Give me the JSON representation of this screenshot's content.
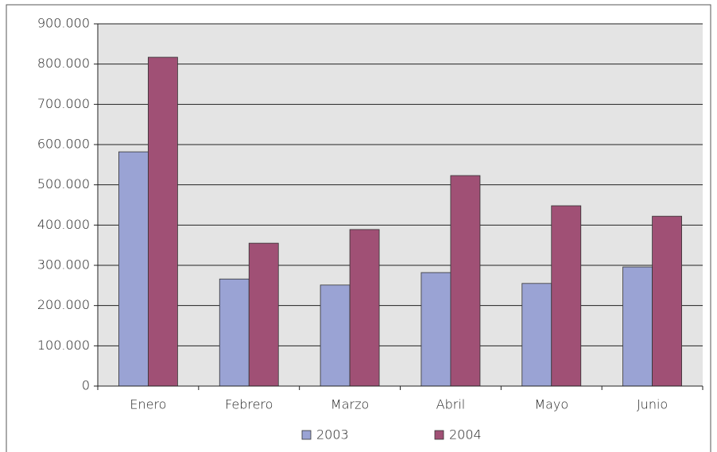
{
  "chart_data": {
    "type": "bar",
    "categories": [
      "Enero",
      "Febrero",
      "Marzo",
      "Abril",
      "Mayo",
      "Junio"
    ],
    "series": [
      {
        "name": "2003",
        "color": "#9aa3d4",
        "values": [
          582000,
          266000,
          251000,
          282000,
          255000,
          296000
        ]
      },
      {
        "name": "2004",
        "color": "#a05075",
        "values": [
          817000,
          355000,
          389000,
          523000,
          448000,
          422000
        ]
      }
    ],
    "ylim": [
      0,
      900000
    ],
    "yticks": [
      0,
      {
        "value": 100000,
        "label": "100.000"
      },
      {
        "value": 200000,
        "label": "200.000"
      },
      {
        "value": 300000,
        "label": "300.000"
      },
      {
        "value": 400000,
        "label": "400.000"
      },
      {
        "value": 500000,
        "label": "500.000"
      },
      {
        "value": 600000,
        "label": "600.000"
      },
      {
        "value": 700000,
        "label": "700.000"
      },
      {
        "value": 800000,
        "label": "800.000"
      },
      {
        "value": 900000,
        "label": "900.000"
      }
    ],
    "grid": true,
    "legend": "bottom"
  }
}
